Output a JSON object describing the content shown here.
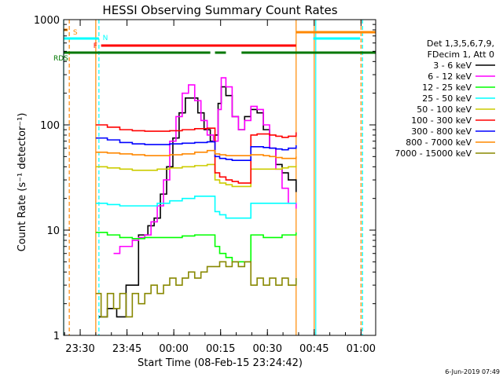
{
  "chart_data": {
    "type": "line",
    "title": "HESSI Observing Summary Count Rates",
    "xlabel": "Start Time (08-Feb-15 23:24:42)",
    "ylabel": "Count Rate (s⁻¹ detector⁻¹)",
    "x_unit": "minutes after 23:24:42",
    "xlim": [
      0,
      100
    ],
    "ylim": [
      1,
      1000
    ],
    "yscale": "log",
    "grid": false,
    "legend_position": "right",
    "legend_header": [
      "Det 1,3,5,6,7,9,",
      "FDecim 1, Att 0"
    ],
    "x_ticks": [
      {
        "x": 5.3,
        "label": "23:30"
      },
      {
        "x": 20.3,
        "label": "23:45"
      },
      {
        "x": 35.3,
        "label": "00:00"
      },
      {
        "x": 50.3,
        "label": "00:15"
      },
      {
        "x": 65.3,
        "label": "00:30"
      },
      {
        "x": 80.3,
        "label": "00:45"
      },
      {
        "x": 95.3,
        "label": "01:00"
      }
    ],
    "y_ticks": [
      {
        "y": 1,
        "label": "1"
      },
      {
        "y": 10,
        "label": "10"
      },
      {
        "y": 100,
        "label": "100"
      },
      {
        "y": 1000,
        "label": "1000"
      }
    ],
    "series": [
      {
        "name": "3 - 6 keV",
        "color": "#000000",
        "x": [
          11.3,
          14,
          17,
          20,
          24,
          27,
          29,
          31,
          33,
          35,
          37,
          39,
          41,
          43,
          45,
          47,
          48.5,
          49.5,
          50.5,
          52,
          54,
          56,
          58,
          60,
          62,
          64,
          66,
          68,
          70,
          72,
          74.5
        ],
        "y": [
          1.5,
          1.8,
          1.5,
          3,
          9,
          11,
          13,
          22,
          40,
          75,
          130,
          180,
          180,
          130,
          90,
          70,
          80,
          160,
          230,
          190,
          120,
          90,
          120,
          140,
          130,
          90,
          60,
          42,
          35,
          30,
          23
        ]
      },
      {
        "name": "6 - 12 keV",
        "color": "#ff00ff",
        "x": [
          16,
          18,
          20,
          22,
          24,
          26,
          28,
          30,
          32,
          34,
          36,
          38,
          40,
          42,
          44,
          46,
          48,
          49.5,
          50.5,
          52,
          54,
          56,
          58,
          60,
          62,
          64,
          66,
          68,
          70,
          72,
          74.5
        ],
        "y": [
          6,
          7,
          7,
          8,
          8.5,
          9,
          12,
          17,
          30,
          70,
          120,
          200,
          240,
          170,
          110,
          80,
          70,
          140,
          280,
          230,
          120,
          90,
          110,
          150,
          140,
          100,
          60,
          38,
          25,
          18,
          16
        ]
      },
      {
        "name": "12 - 25 keV",
        "color": "#00ff00",
        "x": [
          10.3,
          14,
          18,
          22,
          26,
          30,
          34,
          38,
          42,
          46,
          48,
          48.5,
          50,
          52,
          54,
          56,
          58,
          60,
          62,
          64,
          66,
          68,
          70,
          72,
          74.5
        ],
        "y": [
          9.5,
          9,
          8.5,
          8.3,
          8.5,
          8.5,
          8.5,
          8.8,
          9,
          9,
          9,
          7,
          6,
          5.5,
          5,
          5,
          5,
          9,
          9,
          8.5,
          8.5,
          8.5,
          9,
          9,
          9.5
        ]
      },
      {
        "name": "25 - 50 keV",
        "color": "#00ffff",
        "x": [
          10.3,
          14,
          18,
          22,
          26,
          30,
          34,
          38,
          42,
          46,
          48,
          48.5,
          50,
          52,
          54,
          56,
          58,
          60,
          62,
          64,
          66,
          68,
          70,
          72,
          74.5
        ],
        "y": [
          18,
          17.5,
          17,
          17,
          17,
          18,
          19,
          20,
          21,
          21,
          21,
          15,
          14,
          13,
          13,
          13,
          13,
          18,
          18,
          18,
          18,
          18,
          18,
          18,
          18
        ]
      },
      {
        "name": "50 - 100 keV",
        "color": "#cccc00",
        "x": [
          10.3,
          14,
          18,
          22,
          26,
          30,
          34,
          38,
          42,
          46,
          48,
          48.5,
          50,
          52,
          54,
          56,
          58,
          60,
          62,
          64,
          66,
          68,
          70,
          72,
          74.5
        ],
        "y": [
          40,
          39,
          38,
          37,
          37,
          38,
          39,
          40,
          41,
          42,
          42,
          30,
          28,
          27,
          26,
          26,
          26,
          38,
          38,
          38,
          38,
          38,
          39,
          40,
          41
        ]
      },
      {
        "name": "100 - 300 keV",
        "color": "#ff0000",
        "x": [
          10.3,
          14,
          18,
          22,
          26,
          30,
          34,
          38,
          42,
          46,
          48,
          48.5,
          50,
          52,
          54,
          56,
          58,
          60,
          62,
          64,
          66,
          68,
          70,
          72,
          74.5
        ],
        "y": [
          100,
          95,
          90,
          88,
          87,
          87,
          88,
          90,
          92,
          93,
          93,
          35,
          32,
          30,
          29,
          28,
          28,
          80,
          82,
          82,
          80,
          78,
          76,
          78,
          85
        ]
      },
      {
        "name": "300 - 800 keV",
        "color": "#0000ff",
        "x": [
          10.3,
          14,
          18,
          22,
          26,
          30,
          34,
          38,
          42,
          46,
          48,
          48.5,
          50,
          52,
          54,
          56,
          58,
          60,
          62,
          64,
          66,
          68,
          70,
          72,
          74.5
        ],
        "y": [
          75,
          72,
          68,
          66,
          65,
          65,
          66,
          67,
          68,
          69,
          69,
          50,
          48,
          47,
          46,
          46,
          46,
          62,
          62,
          61,
          60,
          59,
          58,
          60,
          64
        ]
      },
      {
        "name": "800 - 7000 keV",
        "color": "#ff8800",
        "x": [
          10.3,
          14,
          18,
          22,
          26,
          30,
          34,
          38,
          42,
          46,
          48,
          48.5,
          50,
          52,
          54,
          56,
          58,
          60,
          62,
          64,
          66,
          68,
          70,
          72,
          74.5
        ],
        "y": [
          55,
          54,
          53,
          52,
          51,
          51,
          52,
          53,
          55,
          57,
          57,
          53,
          52,
          51,
          51,
          51,
          51,
          52,
          52,
          51,
          50,
          49,
          48,
          48,
          50
        ]
      },
      {
        "name": "7000 - 15000 keV",
        "color": "#888800",
        "x": [
          10.3,
          12,
          14,
          16,
          18,
          20,
          22,
          24,
          26,
          28,
          30,
          32,
          34,
          36,
          38,
          40,
          42,
          44,
          46,
          48,
          50,
          52,
          54,
          56,
          58,
          60,
          62,
          64,
          66,
          68,
          70,
          72,
          74.5
        ],
        "y": [
          2.5,
          1.5,
          2.5,
          1.8,
          2.5,
          1.5,
          2.5,
          2,
          2.5,
          3,
          2.5,
          3,
          3.5,
          3,
          3.5,
          4,
          3.5,
          4,
          4.5,
          4.5,
          5,
          4.5,
          5,
          4.5,
          5,
          3,
          3.5,
          3,
          3.5,
          3,
          3.5,
          3,
          3.5
        ]
      }
    ],
    "state_bars": [
      {
        "label": "S",
        "color": "#ff8800",
        "segments": [
          [
            0,
            1.3
          ]
        ]
      },
      {
        "label": "N",
        "color": "#00ffff",
        "segments": [
          [
            0,
            11.3
          ],
          [
            80,
            95
          ]
        ]
      },
      {
        "label": "F",
        "color": "#ff0000",
        "segments": [
          [
            12,
            74.5
          ]
        ]
      },
      {
        "label": "",
        "color": "#ff8800",
        "segments": [
          [
            74.5,
            100
          ]
        ]
      },
      {
        "label": "RDS",
        "color": "#007700",
        "segments": [
          [
            0,
            47
          ],
          [
            48.5,
            52
          ],
          [
            57,
            100
          ]
        ]
      }
    ],
    "vlines": [
      {
        "x": 0,
        "color": "#00ffff",
        "style": "solid"
      },
      {
        "x": 1.8,
        "color": "#ff8800",
        "style": "dashed"
      },
      {
        "x": 11.3,
        "color": "#00ffff",
        "style": "dashed"
      },
      {
        "x": 10.3,
        "color": "#ff8800",
        "style": "solid"
      },
      {
        "x": 74.5,
        "color": "#ff8800",
        "style": "solid"
      },
      {
        "x": 80.8,
        "color": "#00ffff",
        "style": "solid"
      },
      {
        "x": 80.3,
        "color": "#ff8800",
        "style": "solid"
      },
      {
        "x": 95.3,
        "color": "#ff8800",
        "style": "dashed"
      },
      {
        "x": 95.8,
        "color": "#00ffff",
        "style": "dashed"
      }
    ]
  },
  "footer": {
    "date_stamp": "6-Jun-2019 07:49"
  }
}
